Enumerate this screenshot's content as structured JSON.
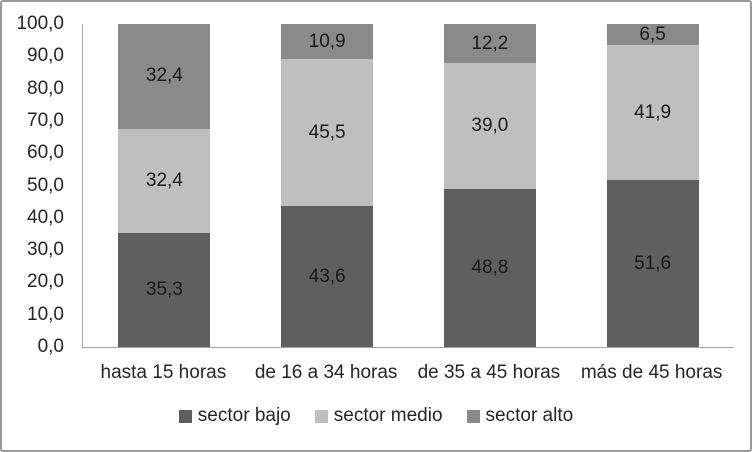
{
  "chart_data": {
    "type": "bar",
    "variant": "stacked",
    "title": "",
    "categories": [
      "hasta 15 horas",
      "de 16 a 34 horas",
      "de 35 a 45 horas",
      "más de 45 horas"
    ],
    "series": [
      {
        "name": "sector bajo",
        "color": "#5f5f5f",
        "values": [
          35.3,
          43.6,
          48.8,
          51.6
        ],
        "labels": [
          "35,3",
          "43,6",
          "48,8",
          "51,6"
        ]
      },
      {
        "name": "sector medio",
        "color": "#bfbfbf",
        "values": [
          32.4,
          45.5,
          39.0,
          41.9
        ],
        "labels": [
          "32,4",
          "45,5",
          "39,0",
          "41,9"
        ]
      },
      {
        "name": "sector alto",
        "color": "#8a8a8a",
        "values": [
          32.4,
          10.9,
          12.2,
          6.5
        ],
        "labels": [
          "32,4",
          "10,9",
          "12,2",
          "6,5"
        ]
      }
    ],
    "y_axis": {
      "min": 0,
      "max": 100,
      "step": 10,
      "tick_labels": [
        "100,0",
        "90,0",
        "80,0",
        "70,0",
        "60,0",
        "50,0",
        "40,0",
        "30,0",
        "20,0",
        "10,0",
        "0,0"
      ]
    },
    "ylim": [
      0,
      100
    ],
    "grid": false,
    "legend": {
      "position": "bottom",
      "entries": [
        "sector bajo",
        "sector medio",
        "sector alto"
      ]
    }
  },
  "colors": {
    "background": "#ffffff",
    "frame_border": "#999999",
    "axis_line": "#a6a6a6",
    "axis_text": "#262626",
    "data_label_text": "#1a1a1a",
    "series_bajo": "#5f5f5f",
    "series_medio": "#bfbfbf",
    "series_alto": "#8a8a8a"
  }
}
